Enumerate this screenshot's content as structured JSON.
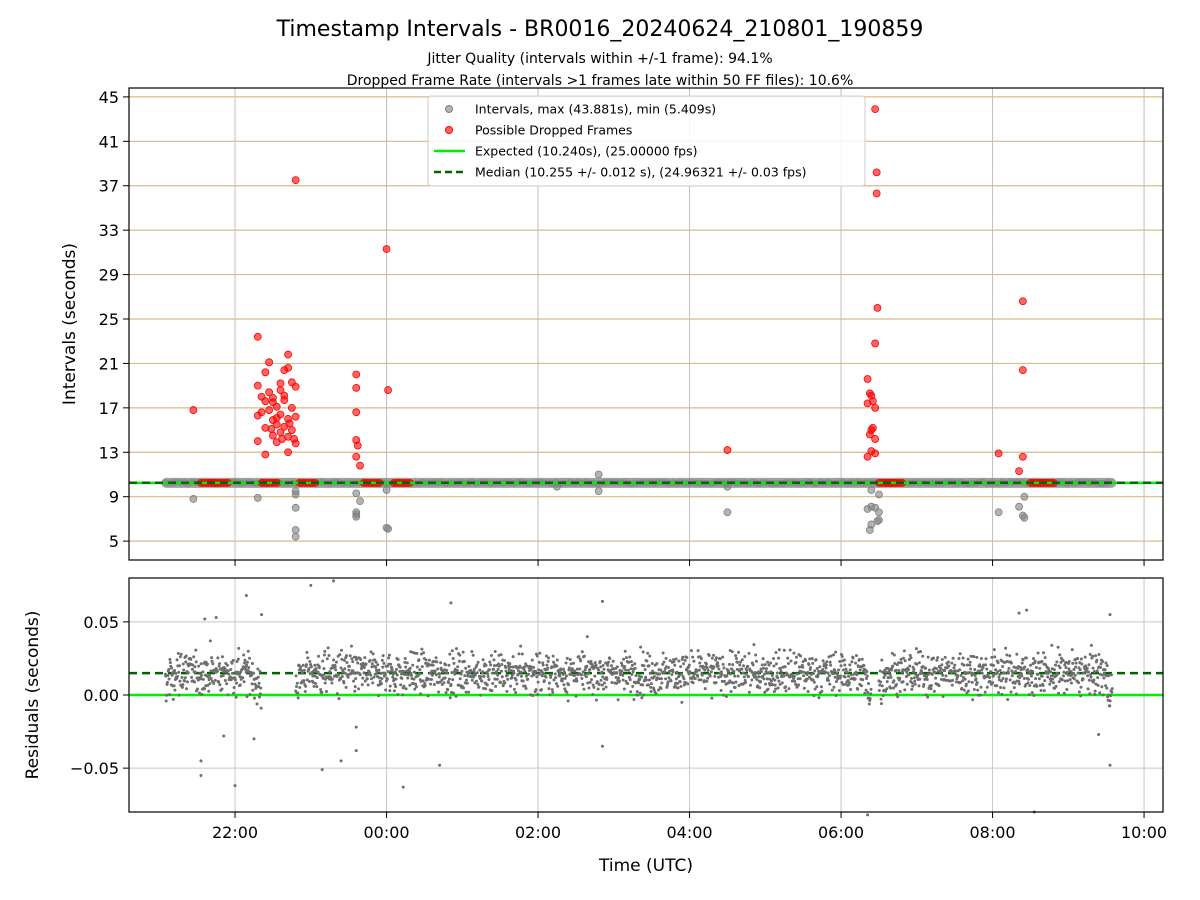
{
  "figure": {
    "title": "Timestamp Intervals - BR0016_20240624_210801_190859",
    "subtitle_1": "Jitter Quality (intervals within +/-1 frame): 94.1%",
    "subtitle_2": "Dropped Frame Rate (intervals >1 frames late within 50 FF files): 10.6%"
  },
  "chart_data": [
    {
      "type": "scatter",
      "ylabel": "Intervals (seconds)",
      "xlabel": "",
      "xlim": [
        20.6,
        34.25
      ],
      "ylim": [
        3.3,
        45.8
      ],
      "x_ticks": [
        22,
        24,
        26,
        28,
        30,
        32,
        34
      ],
      "y_ticks": [
        5,
        9,
        13,
        17,
        21,
        25,
        29,
        33,
        37,
        41,
        45
      ],
      "y_tick_labels": [
        "5",
        "9",
        "13",
        "17",
        "21",
        "25",
        "29",
        "33",
        "37",
        "41",
        "45"
      ],
      "grid": "horizontal tan lines at y ticks, vertical grey lines at x ticks",
      "legend": "top-center",
      "colors": {
        "intervals": "#808080",
        "dropped": "#ff0000",
        "expected": "#00ee00",
        "median": "#006400",
        "hgrid": "#d2be87"
      },
      "expected": 10.24,
      "median": 10.255,
      "series": [
        {
          "name": "Intervals, max (43.881s), min (5.409s)",
          "band": {
            "x_start": 21.08,
            "x_end": 33.58,
            "y": 10.24
          },
          "points": [
            [
              21.45,
              8.8
            ],
            [
              22.3,
              8.9
            ],
            [
              22.8,
              9.5
            ],
            [
              22.8,
              8.0
            ],
            [
              22.8,
              6.0
            ],
            [
              22.8,
              5.4
            ],
            [
              23.6,
              7.6
            ],
            [
              23.6,
              7.4
            ],
            [
              23.6,
              7.2
            ],
            [
              23.65,
              8.6
            ],
            [
              23.6,
              9.3
            ],
            [
              24.0,
              9.6
            ],
            [
              24.0,
              6.2
            ],
            [
              24.02,
              6.1
            ],
            [
              22.8,
              9.2
            ],
            [
              26.25,
              9.9
            ],
            [
              26.8,
              9.5
            ],
            [
              26.8,
              11.0
            ],
            [
              28.5,
              7.6
            ],
            [
              28.5,
              9.9
            ],
            [
              30.35,
              7.9
            ],
            [
              30.4,
              8.1
            ],
            [
              30.45,
              8.0
            ],
            [
              30.4,
              9.6
            ],
            [
              30.5,
              9.2
            ],
            [
              30.4,
              6.5
            ],
            [
              30.38,
              6.0
            ],
            [
              30.48,
              6.8
            ],
            [
              30.5,
              6.9
            ],
            [
              30.5,
              7.6
            ],
            [
              32.08,
              7.6
            ],
            [
              32.35,
              8.1
            ],
            [
              32.4,
              7.3
            ],
            [
              32.42,
              7.1
            ],
            [
              32.42,
              9.0
            ]
          ]
        },
        {
          "name": "Possible Dropped Frames",
          "baseline_x": [
            21.55,
            21.7,
            22.35,
            22.85,
            23.7,
            24.1,
            30.5,
            30.6,
            32.5,
            32.6
          ],
          "points": [
            [
              21.45,
              16.8
            ],
            [
              22.3,
              23.4
            ],
            [
              22.3,
              19.0
            ],
            [
              22.3,
              16.3
            ],
            [
              22.3,
              14.0
            ],
            [
              22.35,
              18.0
            ],
            [
              22.4,
              20.2
            ],
            [
              22.45,
              21.1
            ],
            [
              22.5,
              17.5
            ],
            [
              22.55,
              15.5
            ],
            [
              22.6,
              18.6
            ],
            [
              22.65,
              20.4
            ],
            [
              22.7,
              21.8
            ],
            [
              22.75,
              19.3
            ],
            [
              22.8,
              18.9
            ],
            [
              22.8,
              37.5
            ],
            [
              22.4,
              15.2
            ],
            [
              22.45,
              16.8
            ],
            [
              22.5,
              15.9
            ],
            [
              22.55,
              17.1
            ],
            [
              22.6,
              14.8
            ],
            [
              22.6,
              16.4
            ],
            [
              22.65,
              15.3
            ],
            [
              22.65,
              17.7
            ],
            [
              22.7,
              14.4
            ],
            [
              22.7,
              16.0
            ],
            [
              22.75,
              15.0
            ],
            [
              22.75,
              17.0
            ],
            [
              22.78,
              14.2
            ],
            [
              22.8,
              16.2
            ],
            [
              22.8,
              13.8
            ],
            [
              22.5,
              14.5
            ],
            [
              22.55,
              13.9
            ],
            [
              22.4,
              12.8
            ],
            [
              22.7,
              13.0
            ],
            [
              22.45,
              18.4
            ],
            [
              22.6,
              19.2
            ],
            [
              22.7,
              20.6
            ],
            [
              22.5,
              17.9
            ],
            [
              22.35,
              16.6
            ],
            [
              22.65,
              18.1
            ],
            [
              22.55,
              16.1
            ],
            [
              22.4,
              17.6
            ],
            [
              22.72,
              15.6
            ],
            [
              22.62,
              14.2
            ],
            [
              22.48,
              15.1
            ],
            [
              23.6,
              20.0
            ],
            [
              23.6,
              18.8
            ],
            [
              23.6,
              16.6
            ],
            [
              23.6,
              14.1
            ],
            [
              23.62,
              13.6
            ],
            [
              23.65,
              11.8
            ],
            [
              23.6,
              12.6
            ],
            [
              24.0,
              31.3
            ],
            [
              24.02,
              18.6
            ],
            [
              28.5,
              13.2
            ],
            [
              30.35,
              19.6
            ],
            [
              30.38,
              18.3
            ],
            [
              30.4,
              18.1
            ],
            [
              30.42,
              17.6
            ],
            [
              30.45,
              17.0
            ],
            [
              30.35,
              17.4
            ],
            [
              30.4,
              15.0
            ],
            [
              30.42,
              15.2
            ],
            [
              30.38,
              14.6
            ],
            [
              30.45,
              14.2
            ],
            [
              30.35,
              12.6
            ],
            [
              30.4,
              13.1
            ],
            [
              30.45,
              12.9
            ],
            [
              30.45,
              43.9
            ],
            [
              30.47,
              38.2
            ],
            [
              30.47,
              36.3
            ],
            [
              30.48,
              26.0
            ],
            [
              30.45,
              22.8
            ],
            [
              32.08,
              12.9
            ],
            [
              32.35,
              11.3
            ],
            [
              32.4,
              12.6
            ],
            [
              32.4,
              20.4
            ],
            [
              32.4,
              26.6
            ]
          ]
        },
        {
          "name": "Expected (10.240s), (25.00000 fps)"
        },
        {
          "name": "Median (10.255 +/- 0.012 s), (24.96321 +/- 0.03 fps)"
        }
      ]
    },
    {
      "type": "scatter",
      "ylabel": "Residuals (seconds)",
      "xlabel": "Time (UTC)",
      "xlim": [
        20.6,
        34.25
      ],
      "ylim": [
        -0.08,
        0.08
      ],
      "x_ticks": [
        22,
        24,
        26,
        28,
        30,
        32,
        34
      ],
      "x_tick_labels": [
        "22:00",
        "00:00",
        "02:00",
        "04:00",
        "06:00",
        "08:00",
        "10:00"
      ],
      "y_ticks": [
        -0.05,
        0.0,
        0.05
      ],
      "y_tick_labels": [
        "−0.05",
        "0.00",
        "0.05"
      ],
      "grid": "grey grid at ticks",
      "expected": 0.0,
      "median": 0.015,
      "series": [
        {
          "name": "Residuals",
          "segments": [
            [
              21.08,
              22.35
            ],
            [
              22.8,
              30.4
            ],
            [
              30.5,
              33.58
            ]
          ],
          "center": 0.015,
          "spread": 0.012,
          "outliers": [
            [
              21.6,
              0.052
            ],
            [
              21.75,
              0.053
            ],
            [
              22.15,
              0.068
            ],
            [
              22.35,
              0.055
            ],
            [
              21.55,
              -0.045
            ],
            [
              21.55,
              -0.055
            ],
            [
              21.85,
              -0.028
            ],
            [
              22.0,
              -0.062
            ],
            [
              22.25,
              -0.03
            ],
            [
              23.0,
              0.075
            ],
            [
              23.3,
              0.078
            ],
            [
              23.15,
              -0.051
            ],
            [
              23.4,
              -0.045
            ],
            [
              23.6,
              -0.022
            ],
            [
              23.6,
              -0.038
            ],
            [
              24.22,
              -0.063
            ],
            [
              24.7,
              -0.048
            ],
            [
              24.85,
              0.063
            ],
            [
              26.85,
              0.064
            ],
            [
              26.85,
              -0.035
            ],
            [
              30.35,
              -0.082
            ],
            [
              32.35,
              0.056
            ],
            [
              32.45,
              0.058
            ],
            [
              32.55,
              -0.08
            ],
            [
              33.55,
              0.055
            ],
            [
              33.55,
              -0.048
            ],
            [
              33.4,
              -0.027
            ]
          ]
        }
      ]
    }
  ]
}
